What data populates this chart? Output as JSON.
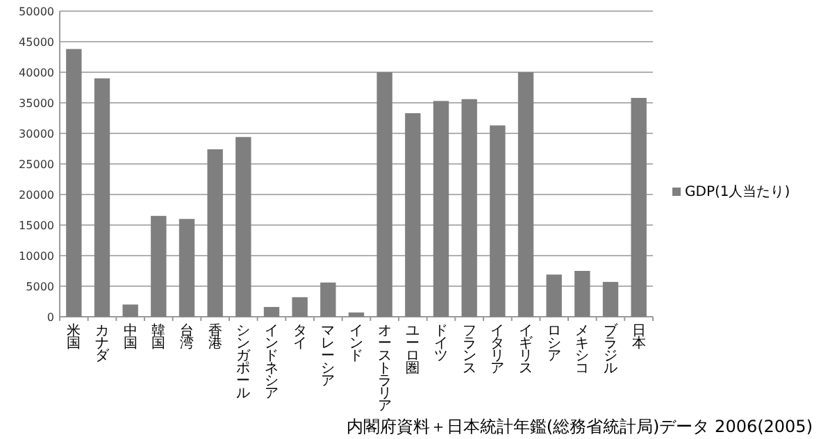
{
  "chart_data": {
    "type": "bar",
    "categories": [
      "米国",
      "カナダ",
      "中国",
      "韓国",
      "台湾",
      "香港",
      "シンガポール",
      "インドネシア",
      "タイ",
      "マレーシア",
      "インド",
      "オーストラリア",
      "ユーロ圏",
      "ドイツ",
      "フランス",
      "イタリア",
      "イギリス",
      "ロシア",
      "メキシコ",
      "ブラジル",
      "日本"
    ],
    "series": [
      {
        "name": "GDP(1人当たり)",
        "color": "#7f7f7f",
        "values": [
          43800,
          39000,
          2000,
          16500,
          16000,
          27400,
          29400,
          1600,
          3200,
          5600,
          700,
          40000,
          33300,
          35300,
          35600,
          31300,
          40000,
          6900,
          7500,
          5700,
          35800
        ]
      }
    ],
    "ylim": [
      0,
      50000
    ],
    "yticks": [
      0,
      5000,
      10000,
      15000,
      20000,
      25000,
      30000,
      35000,
      40000,
      45000,
      50000
    ],
    "grid": "y",
    "legend": "right",
    "annotations": [
      "内閣府資料＋日本統計年鑑(総務省統計局)データ 2006(2005)"
    ]
  }
}
